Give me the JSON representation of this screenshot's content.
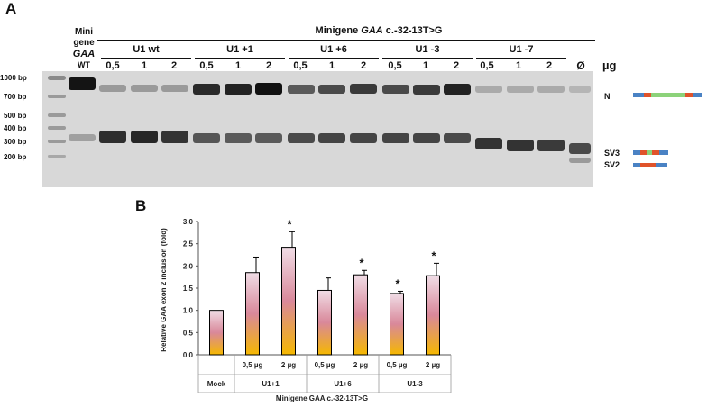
{
  "panel_a": {
    "label": "A",
    "header": "Minigene GAA c.-32-13T>G",
    "header_plain": "Minigene ",
    "header_italic": "GAA",
    "header_tail": " c.-32-13T>G",
    "minigene_label": [
      "Mini",
      "gene",
      "GAA",
      "WT"
    ],
    "groups": [
      "U1 wt",
      "U1 +1",
      "U1 +6",
      "U1 -3",
      "U1 -7"
    ],
    "concentrations": [
      "0,5",
      "1",
      "2"
    ],
    "empty_lane": "Ø",
    "unit": "µg",
    "ladder_sizes": [
      "1000 bp",
      "700 bp",
      "500 bp",
      "400 bp",
      "300 bp",
      "200 bp"
    ],
    "band_labels": [
      "N",
      "SV3",
      "SV2"
    ]
  },
  "panel_b": {
    "label": "B"
  },
  "chart_data": {
    "type": "bar",
    "ylabel": "Relative GAA exon 2 inclusion (fold)",
    "xlabel": "Minigene GAA c.-32-13T>G",
    "ylim": [
      0,
      3.0
    ],
    "yticks": [
      "0,0",
      "0,5",
      "1,0",
      "1,5",
      "2,0",
      "2,5",
      "3,0"
    ],
    "categories": [
      "Mock",
      "0,5 µg",
      "2 µg",
      "0,5 µg",
      "2 µg",
      "0,5 µg",
      "2 µg"
    ],
    "groups": [
      "Mock",
      "U1+1",
      "U1+6",
      "U1-3"
    ],
    "values": [
      1.0,
      1.85,
      2.42,
      1.45,
      1.8,
      1.38,
      1.78
    ],
    "errors": [
      0,
      0.35,
      0.35,
      0.28,
      0.1,
      0.05,
      0.28
    ],
    "significance": [
      "",
      "",
      "*",
      "",
      "*",
      "*",
      "*"
    ],
    "colors": {
      "top": "#f0dde6",
      "mid": "#d9889a",
      "bottom": "#f5b800"
    }
  }
}
